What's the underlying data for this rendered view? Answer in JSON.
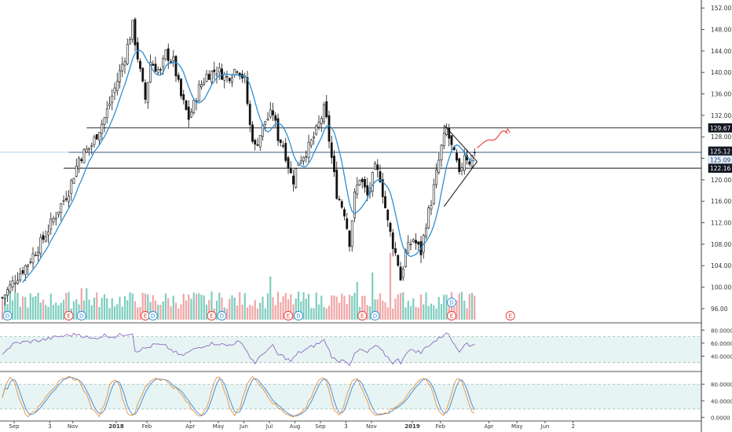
{
  "chart_data": {
    "type": "candlestick",
    "title": "",
    "price_axis": {
      "ticks": [
        "152.00",
        "148.00",
        "144.00",
        "140.00",
        "136.00",
        "132.00",
        "128.00",
        "124.00",
        "120.00",
        "116.00",
        "112.00",
        "108.00",
        "104.00",
        "100.00",
        "96.00"
      ],
      "ylim": [
        93.5,
        153.2
      ]
    },
    "time_axis": {
      "labels": [
        "Sep",
        "3",
        "Nov",
        "2018",
        "Feb",
        "Apr",
        "May",
        "Jun",
        "Jul",
        "Aug",
        "Sep",
        "3",
        "Nov",
        "2019",
        "Feb",
        "Apr",
        "May",
        "Jun",
        "2"
      ],
      "label_bar_index": [
        0,
        14,
        23,
        40,
        52,
        69,
        80,
        90,
        100,
        110,
        120,
        130,
        140,
        156,
        167,
        186,
        197,
        208,
        219
      ],
      "total_slots": 230
    },
    "price_labels": [
      {
        "text": "129.67",
        "value": 129.67,
        "style": "dark",
        "line": "black"
      },
      {
        "text": "125.12",
        "value": 125.12,
        "style": "dark",
        "line": "blue"
      },
      {
        "text": "125.09",
        "value": 125.09,
        "style": "light",
        "line": "none"
      },
      {
        "text": "122.16",
        "value": 122.16,
        "style": "dark",
        "line": "black"
      }
    ],
    "horizontal_lines": [
      {
        "value": 129.67,
        "from_bar": 33,
        "color": "#111111"
      },
      {
        "value": 125.12,
        "from_bar": 26,
        "color": "#1f3d6e"
      },
      {
        "value": 122.16,
        "from_bar": 24,
        "color": "#111111"
      }
    ],
    "triangle": {
      "apex": [
        186,
        123.4
      ],
      "upper_start": [
        173,
        130.2
      ],
      "lower_start": [
        173,
        115.0
      ]
    },
    "projection": [
      [
        186,
        125.9
      ],
      [
        190,
        127.6
      ],
      [
        193,
        127.2
      ],
      [
        196,
        129.4
      ],
      [
        198,
        128.6
      ]
    ],
    "price_anchors": [
      [
        0,
        98.0
      ],
      [
        5,
        101.5
      ],
      [
        10,
        104.5
      ],
      [
        16,
        109.0
      ],
      [
        22,
        114.5
      ],
      [
        26,
        118.0
      ],
      [
        30,
        124.0
      ],
      [
        35,
        126.5
      ],
      [
        40,
        131.5
      ],
      [
        44,
        137.0
      ],
      [
        48,
        143.0
      ],
      [
        51,
        148.7
      ],
      [
        54,
        140.0
      ],
      [
        56,
        135.0
      ],
      [
        58,
        142.0
      ],
      [
        62,
        140.0
      ],
      [
        64,
        143.5
      ],
      [
        67,
        142.0
      ],
      [
        70,
        135.5
      ],
      [
        73,
        131.5
      ],
      [
        75,
        134.0
      ],
      [
        77,
        137.0
      ],
      [
        80,
        139.5
      ],
      [
        84,
        140.5
      ],
      [
        88,
        139.0
      ],
      [
        92,
        141.0
      ],
      [
        95,
        138.5
      ],
      [
        97,
        130.0
      ],
      [
        99,
        126.0
      ],
      [
        101,
        128.5
      ],
      [
        103,
        131.0
      ],
      [
        106,
        132.5
      ],
      [
        108,
        128.0
      ],
      [
        110,
        126.5
      ],
      [
        113,
        121.0
      ],
      [
        114,
        120.0
      ],
      [
        116,
        123.5
      ],
      [
        120,
        126.0
      ],
      [
        123,
        129.0
      ],
      [
        126,
        133.0
      ],
      [
        127,
        131.0
      ],
      [
        129,
        124.0
      ],
      [
        131,
        117.5
      ],
      [
        134,
        114.0
      ],
      [
        136,
        108.5
      ],
      [
        138,
        117.0
      ],
      [
        140,
        120.5
      ],
      [
        143,
        117.0
      ],
      [
        146,
        122.0
      ],
      [
        148,
        120.5
      ],
      [
        151,
        112.0
      ],
      [
        153,
        108.0
      ],
      [
        155,
        104.5
      ],
      [
        156,
        101.5
      ],
      [
        158,
        106.5
      ],
      [
        161,
        109.0
      ],
      [
        164,
        106.5
      ],
      [
        166,
        112.0
      ],
      [
        168,
        116.0
      ],
      [
        170,
        121.0
      ],
      [
        172,
        126.0
      ],
      [
        174,
        129.5
      ],
      [
        176,
        126.0
      ],
      [
        178,
        123.0
      ],
      [
        179,
        120.5
      ],
      [
        181,
        125.0
      ],
      [
        183,
        123.5
      ],
      [
        185,
        125.09
      ]
    ],
    "moving_average": {
      "color": "#2c8fd6",
      "period": 8
    },
    "volume": {
      "colors": {
        "up": "#7ecdbf",
        "down": "#f0a6a6"
      }
    },
    "events": [
      {
        "label": "D",
        "bar": 2,
        "kind": "dividend"
      },
      {
        "label": "E",
        "bar": 26,
        "kind": "earnings"
      },
      {
        "label": "D",
        "bar": 31,
        "kind": "dividend"
      },
      {
        "label": "E",
        "bar": 56,
        "kind": "earnings"
      },
      {
        "label": "D",
        "bar": 59,
        "kind": "dividend"
      },
      {
        "label": "E",
        "bar": 82,
        "kind": "earnings"
      },
      {
        "label": "D",
        "bar": 86,
        "kind": "dividend"
      },
      {
        "label": "E",
        "bar": 112,
        "kind": "earnings"
      },
      {
        "label": "D",
        "bar": 116,
        "kind": "dividend"
      },
      {
        "label": "E",
        "bar": 141,
        "kind": "earnings"
      },
      {
        "label": "D",
        "bar": 146,
        "kind": "dividend"
      },
      {
        "label": "E",
        "bar": 176,
        "kind": "earnings"
      },
      {
        "label": "D",
        "bar": 176,
        "kind": "dividend",
        "stack": 1
      },
      {
        "label": "E",
        "bar": 199,
        "kind": "earnings",
        "hollow": true
      }
    ],
    "rsi": {
      "ticks": [
        "80.0000",
        "60.0000",
        "40.0000"
      ],
      "ylim": [
        20,
        90
      ],
      "band": [
        30,
        70
      ],
      "color": "#8e6bbf",
      "anchors": [
        [
          0,
          45
        ],
        [
          5,
          60
        ],
        [
          10,
          62
        ],
        [
          16,
          65
        ],
        [
          22,
          70
        ],
        [
          26,
          72
        ],
        [
          30,
          74
        ],
        [
          35,
          66
        ],
        [
          40,
          72
        ],
        [
          44,
          70
        ],
        [
          48,
          74
        ],
        [
          51,
          76
        ],
        [
          52,
          48
        ],
        [
          56,
          52
        ],
        [
          60,
          58
        ],
        [
          64,
          55
        ],
        [
          68,
          45
        ],
        [
          70,
          40
        ],
        [
          73,
          46
        ],
        [
          76,
          52
        ],
        [
          80,
          58
        ],
        [
          84,
          60
        ],
        [
          88,
          56
        ],
        [
          92,
          62
        ],
        [
          95,
          55
        ],
        [
          97,
          38
        ],
        [
          99,
          30
        ],
        [
          101,
          38
        ],
        [
          103,
          48
        ],
        [
          106,
          55
        ],
        [
          108,
          42
        ],
        [
          110,
          40
        ],
        [
          113,
          32
        ],
        [
          116,
          45
        ],
        [
          120,
          52
        ],
        [
          123,
          58
        ],
        [
          126,
          64
        ],
        [
          127,
          58
        ],
        [
          129,
          40
        ],
        [
          131,
          32
        ],
        [
          134,
          35
        ],
        [
          136,
          28
        ],
        [
          138,
          42
        ],
        [
          140,
          50
        ],
        [
          143,
          45
        ],
        [
          146,
          56
        ],
        [
          148,
          50
        ],
        [
          151,
          38
        ],
        [
          153,
          30
        ],
        [
          155,
          34
        ],
        [
          156,
          30
        ],
        [
          158,
          45
        ],
        [
          161,
          50
        ],
        [
          164,
          45
        ],
        [
          166,
          54
        ],
        [
          168,
          60
        ],
        [
          170,
          64
        ],
        [
          172,
          70
        ],
        [
          174,
          78
        ],
        [
          176,
          64
        ],
        [
          178,
          55
        ],
        [
          179,
          48
        ],
        [
          181,
          60
        ],
        [
          183,
          55
        ],
        [
          185,
          60
        ]
      ]
    },
    "stochastic": {
      "ticks": [
        "80.0000",
        "40.0000",
        "0.0000"
      ],
      "ylim": [
        -5,
        105
      ],
      "levels": [
        80,
        20
      ],
      "colors": {
        "k": "#e8913a",
        "d": "#3a86d4"
      }
    }
  }
}
